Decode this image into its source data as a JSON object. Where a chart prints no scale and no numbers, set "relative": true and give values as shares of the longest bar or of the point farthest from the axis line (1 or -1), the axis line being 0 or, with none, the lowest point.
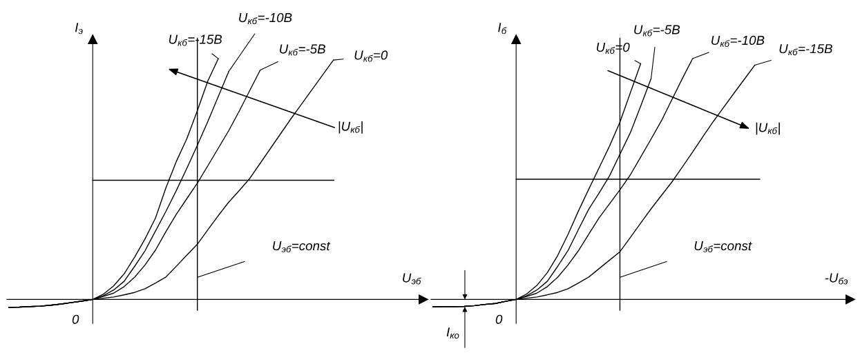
{
  "chart_data": [
    {
      "type": "line",
      "relative": true,
      "xlabel": "U$_{эб}$",
      "ylabel": "I$_{э}$",
      "categories": [
        null,
        null,
        null,
        null,
        null,
        null,
        null,
        null,
        null,
        null,
        null,
        null,
        null,
        null,
        null,
        null,
        null,
        null,
        null,
        null,
        null,
        null,
        null,
        null,
        null,
        null,
        null,
        null,
        null,
        null,
        null,
        null
      ],
      "series": [
        {
          "name": "U$_{кб}$=-15В",
          "color": "#000000",
          "values": [
            -0.033,
            -0.032,
            -0.03,
            -0.028,
            -0.024,
            -0.019,
            -0.013,
            -0.007,
            0.0,
            0.021,
            0.056,
            0.106,
            0.175,
            0.251,
            0.338,
            0.464,
            0.574,
            0.668,
            0.784,
            0.907,
            1.0,
            null,
            null,
            null,
            null,
            null,
            null,
            null,
            null,
            null,
            null,
            null
          ]
        },
        {
          "name": "U$_{кб}$=-10В",
          "color": "#000000",
          "values": [
            -0.033,
            -0.032,
            -0.03,
            -0.028,
            -0.024,
            -0.019,
            -0.013,
            -0.007,
            0.0,
            0.015,
            0.039,
            0.075,
            0.137,
            0.202,
            0.284,
            0.366,
            0.453,
            0.545,
            0.64,
            0.739,
            0.843,
            0.947,
            null,
            null,
            null,
            null,
            null,
            null,
            null,
            null,
            null,
            null
          ]
        },
        {
          "name": "U$_{кб}$=-5В",
          "color": "#000000",
          "values": [
            -0.033,
            -0.032,
            -0.03,
            -0.028,
            -0.024,
            -0.019,
            -0.013,
            -0.007,
            0.0,
            0.012,
            0.026,
            0.053,
            0.092,
            0.143,
            0.205,
            0.282,
            0.354,
            0.419,
            0.483,
            0.555,
            0.628,
            0.701,
            0.782,
            0.867,
            0.952,
            null,
            null,
            null,
            null,
            null,
            null,
            null
          ]
        },
        {
          "name": "U$_{кб}$=0",
          "color": "#000000",
          "values": [
            -0.033,
            -0.032,
            -0.03,
            -0.028,
            -0.024,
            -0.019,
            -0.013,
            -0.007,
            0.0,
            0.005,
            0.01,
            0.019,
            0.029,
            0.044,
            0.068,
            0.093,
            0.138,
            0.184,
            0.229,
            0.289,
            0.348,
            0.404,
            0.452,
            0.502,
            0.565,
            0.628,
            0.691,
            0.754,
            0.814,
            0.874,
            0.934,
            0.994
          ]
        }
      ],
      "ref_lines": [
        {
          "axis": "y",
          "value": 0.495,
          "color": "#000000"
        }
      ],
      "annotations": [
        "0",
        "|U$_{кб}$|",
        "U$_{эб}$=const"
      ]
    },
    {
      "type": "line",
      "relative": true,
      "xlabel": "-U$_{бэ}$",
      "ylabel": "I$_{б}$",
      "categories": [
        null,
        null,
        null,
        null,
        null,
        null,
        null,
        null,
        null,
        null,
        null,
        null,
        null,
        null,
        null,
        null,
        null,
        null,
        null,
        null,
        null,
        null,
        null,
        null,
        null,
        null,
        null,
        null,
        null,
        null,
        null,
        null
      ],
      "series": [
        {
          "name": "U$_{кб}$=0",
          "color": "#000000",
          "values": [
            -0.031,
            -0.03,
            -0.03,
            -0.029,
            -0.026,
            -0.021,
            -0.017,
            -0.008,
            0.0,
            0.022,
            0.058,
            0.111,
            0.182,
            0.27,
            0.367,
            0.458,
            0.547,
            0.637,
            0.736,
            0.858,
            0.979,
            null,
            null,
            null,
            null,
            null,
            null,
            null,
            null,
            null,
            null,
            null
          ]
        },
        {
          "name": "U$_{кб}$=-5В",
          "color": "#000000",
          "values": [
            -0.031,
            -0.03,
            -0.03,
            -0.029,
            -0.026,
            -0.021,
            -0.017,
            -0.008,
            0.0,
            0.015,
            0.039,
            0.075,
            0.137,
            0.203,
            0.29,
            0.375,
            0.442,
            0.513,
            0.603,
            0.692,
            0.803,
            0.917,
            null,
            null,
            null,
            null,
            null,
            null,
            null,
            null,
            null,
            null
          ]
        },
        {
          "name": "U$_{кб}$=-10В",
          "color": "#000000",
          "values": [
            -0.031,
            -0.03,
            -0.03,
            -0.029,
            -0.026,
            -0.021,
            -0.017,
            -0.008,
            0.0,
            0.012,
            0.026,
            0.053,
            0.092,
            0.143,
            0.202,
            0.271,
            0.339,
            0.397,
            0.455,
            0.517,
            0.591,
            0.666,
            0.742,
            0.829,
            0.916,
            1.0,
            null,
            null,
            null,
            null,
            null,
            null
          ]
        },
        {
          "name": "U$_{кб}$=-15В",
          "color": "#000000",
          "values": [
            -0.031,
            -0.03,
            -0.03,
            -0.029,
            -0.026,
            -0.021,
            -0.017,
            -0.008,
            0.0,
            0.005,
            0.01,
            0.019,
            0.029,
            0.044,
            0.068,
            0.093,
            0.128,
            0.163,
            0.198,
            0.257,
            0.317,
            0.376,
            0.432,
            0.487,
            0.549,
            0.612,
            0.676,
            0.739,
            0.798,
            0.857,
            0.915,
            0.973
          ]
        }
      ],
      "ref_lines": [
        {
          "axis": "y",
          "value": 0.499,
          "color": "#000000"
        }
      ],
      "annotations": [
        "0",
        "|U$_{кб}$|",
        "U$_{эб}$=const",
        "I$_{ко}$"
      ]
    }
  ]
}
